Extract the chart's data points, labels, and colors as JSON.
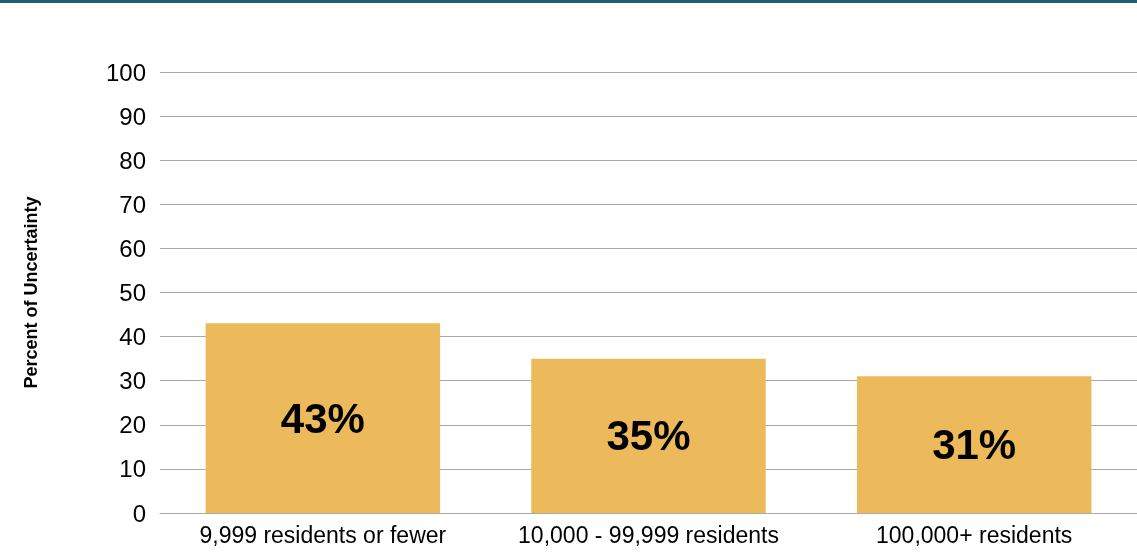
{
  "chart_data": {
    "type": "bar",
    "ylabel": "Percent of Uncertainty",
    "categories": [
      "9,999 residents or fewer",
      "10,000 - 99,999 residents",
      "100,000+ residents"
    ],
    "values": [
      43,
      35,
      31
    ],
    "value_labels": [
      "43%",
      "35%",
      "31%"
    ],
    "color": "#ecba5a",
    "ylim": [
      0,
      100
    ],
    "yticks": [
      0,
      10,
      20,
      30,
      40,
      50,
      60,
      70,
      80,
      90,
      100
    ],
    "grid": "y"
  }
}
